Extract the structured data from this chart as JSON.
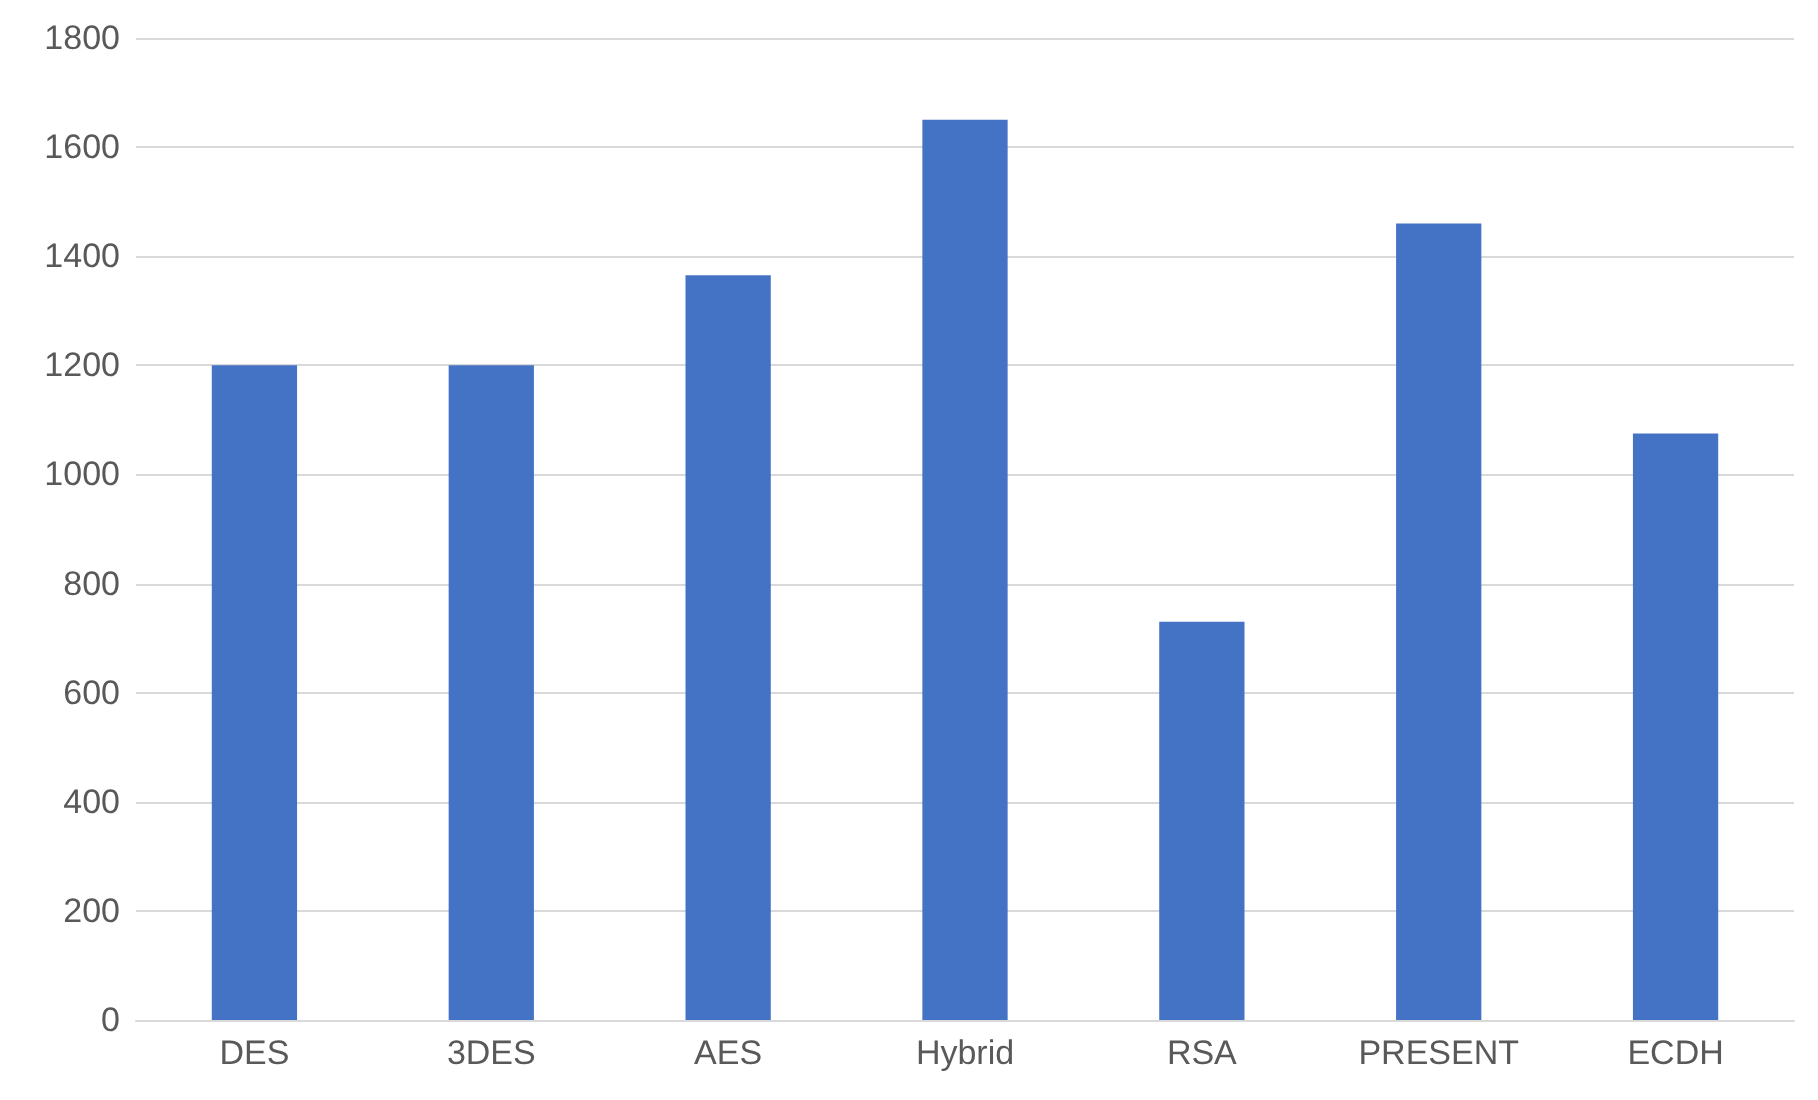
{
  "chart_data": {
    "type": "bar",
    "categories": [
      "DES",
      "3DES",
      "AES",
      "Hybrid",
      "RSA",
      "PRESENT",
      "ECDH"
    ],
    "values": [
      1200,
      1200,
      1365,
      1650,
      730,
      1460,
      1075
    ],
    "color": "#4472c4",
    "ylim": [
      0,
      1800
    ],
    "yticks": [
      0,
      200,
      400,
      600,
      800,
      1000,
      1200,
      1400,
      1600,
      1800
    ],
    "grid": "y"
  }
}
